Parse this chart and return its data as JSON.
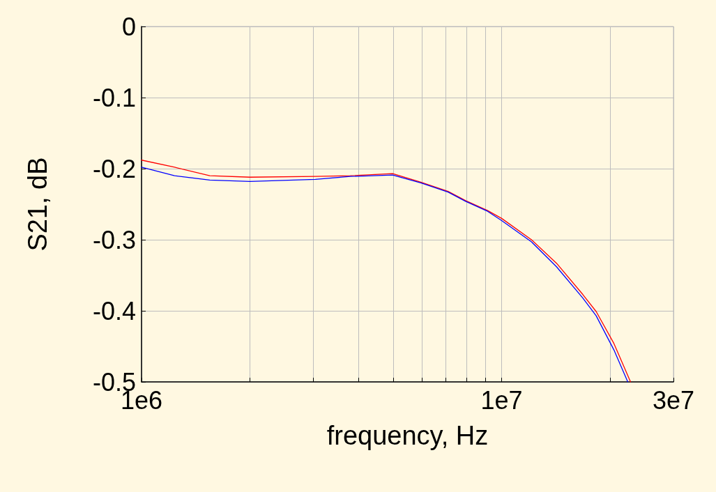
{
  "chart_data": {
    "type": "line",
    "xlabel": "frequency, Hz",
    "ylabel": "S21, dB",
    "log": "x",
    "grid": true,
    "marker": "none",
    "line_style": "solid",
    "xlim": [
      1000000,
      30000000
    ],
    "ylim": [
      -0.5,
      0
    ],
    "xticks": [
      {
        "value": 1000000,
        "label": "1e6"
      },
      {
        "value": 2000000,
        "label": null
      },
      {
        "value": 3000000,
        "label": null
      },
      {
        "value": 4000000,
        "label": null
      },
      {
        "value": 5000000,
        "label": null
      },
      {
        "value": 6000000,
        "label": null
      },
      {
        "value": 7000000,
        "label": null
      },
      {
        "value": 8000000,
        "label": null
      },
      {
        "value": 9000000,
        "label": null
      },
      {
        "value": 10000000,
        "label": "1e7"
      },
      {
        "value": 20000000,
        "label": null
      },
      {
        "value": 30000000,
        "label": "3e7"
      }
    ],
    "yticks": [
      -0.5,
      -0.4,
      -0.3,
      -0.2,
      -0.1,
      0
    ],
    "series": [
      {
        "color": "#ff0000",
        "x": [
          1000000,
          1235000,
          1547000,
          2000000,
          3040000,
          3800000,
          4980000,
          5960000,
          7100000,
          7940000,
          9140000,
          10000000,
          12100000,
          14200000,
          16800000,
          18300000,
          20500000,
          22800000
        ],
        "values": [
          -0.188,
          -0.198,
          -0.21,
          -0.212,
          -0.211,
          -0.21,
          -0.207,
          -0.219,
          -0.232,
          -0.245,
          -0.259,
          -0.27,
          -0.3,
          -0.333,
          -0.377,
          -0.401,
          -0.446,
          -0.5
        ]
      },
      {
        "color": "#0000ff",
        "x": [
          1000000,
          1235000,
          1547000,
          2000000,
          3040000,
          3800000,
          4980000,
          5960000,
          7100000,
          7940000,
          9140000,
          10000000,
          12100000,
          14200000,
          16800000,
          18300000,
          20500000,
          22400000
        ],
        "values": [
          -0.198,
          -0.21,
          -0.216,
          -0.218,
          -0.215,
          -0.211,
          -0.209,
          -0.22,
          -0.233,
          -0.246,
          -0.26,
          -0.273,
          -0.303,
          -0.338,
          -0.382,
          -0.407,
          -0.455,
          -0.5
        ]
      }
    ]
  }
}
